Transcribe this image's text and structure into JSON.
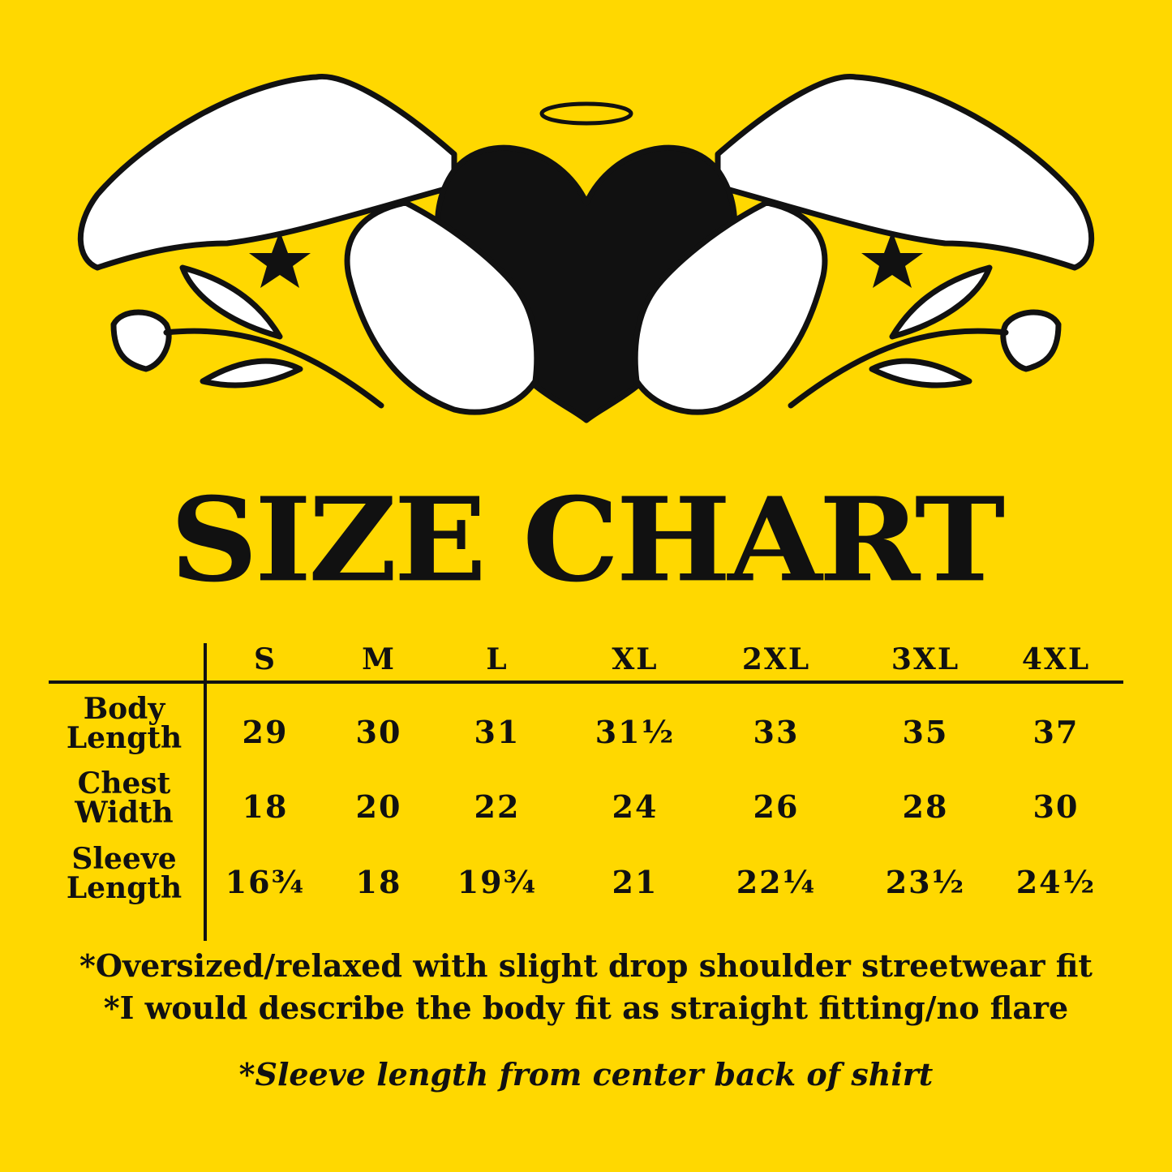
{
  "colors": {
    "background": "#FFD800",
    "ink": "#111111",
    "art_fill": "#FFFFFF"
  },
  "title": "SIZE CHART",
  "chart_data": {
    "type": "table",
    "title": "SIZE CHART",
    "columns": [
      "S",
      "M",
      "L",
      "XL",
      "2XL",
      "3XL",
      "4XL"
    ],
    "rows": [
      {
        "label": [
          "Body",
          "Length"
        ],
        "values": [
          "29",
          "30",
          "31",
          "31½",
          "33",
          "35",
          "37"
        ]
      },
      {
        "label": [
          "Chest",
          "Width"
        ],
        "values": [
          "18",
          "20",
          "22",
          "24",
          "26",
          "28",
          "30"
        ]
      },
      {
        "label": [
          "Sleeve",
          "Length"
        ],
        "values": [
          "16¾",
          "18",
          "19¾",
          "21",
          "22¼",
          "23½",
          "24½"
        ]
      }
    ]
  },
  "notes": [
    "*Oversized/relaxed with slight drop shoulder streetwear fit",
    "*I would describe the body fit as straight fitting/no flare",
    "*Sleeve length from center back of shirt"
  ]
}
